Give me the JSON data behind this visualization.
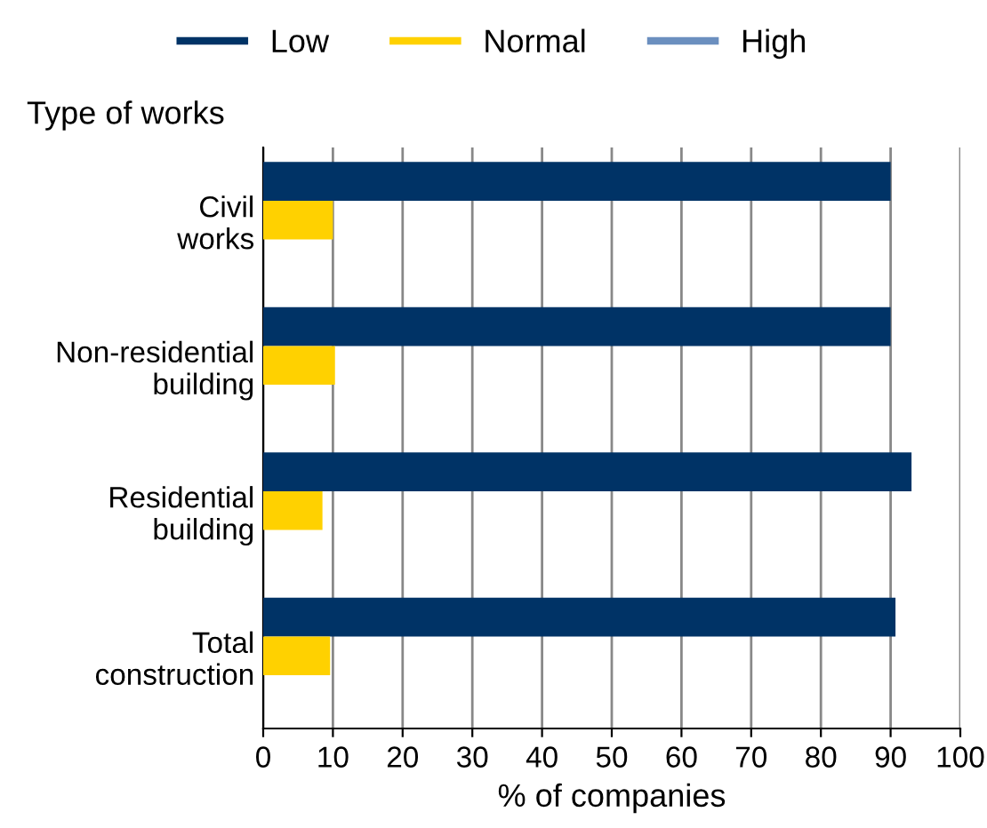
{
  "chart_data": {
    "type": "bar",
    "orientation": "horizontal",
    "ylabel": "Type of works",
    "xlabel": "% of companies",
    "categories": [
      "Civil\nworks",
      "Non-residential\nbuilding",
      "Residential\nbuilding",
      "Total\nconstruction"
    ],
    "series": [
      {
        "name": "Low",
        "color": "#003366",
        "values": [
          90,
          90,
          93,
          90.7
        ]
      },
      {
        "name": "Normal",
        "color": "#ffd100",
        "values": [
          10,
          10.3,
          8.5,
          9.6
        ]
      },
      {
        "name": "High",
        "color": "#6b8fbf",
        "values": [
          0,
          0,
          0,
          0
        ]
      }
    ],
    "xlim": [
      0,
      100
    ],
    "xticks": [
      0,
      10,
      20,
      30,
      40,
      50,
      60,
      70,
      80,
      90,
      100
    ],
    "grid": "x",
    "legend": "top"
  }
}
